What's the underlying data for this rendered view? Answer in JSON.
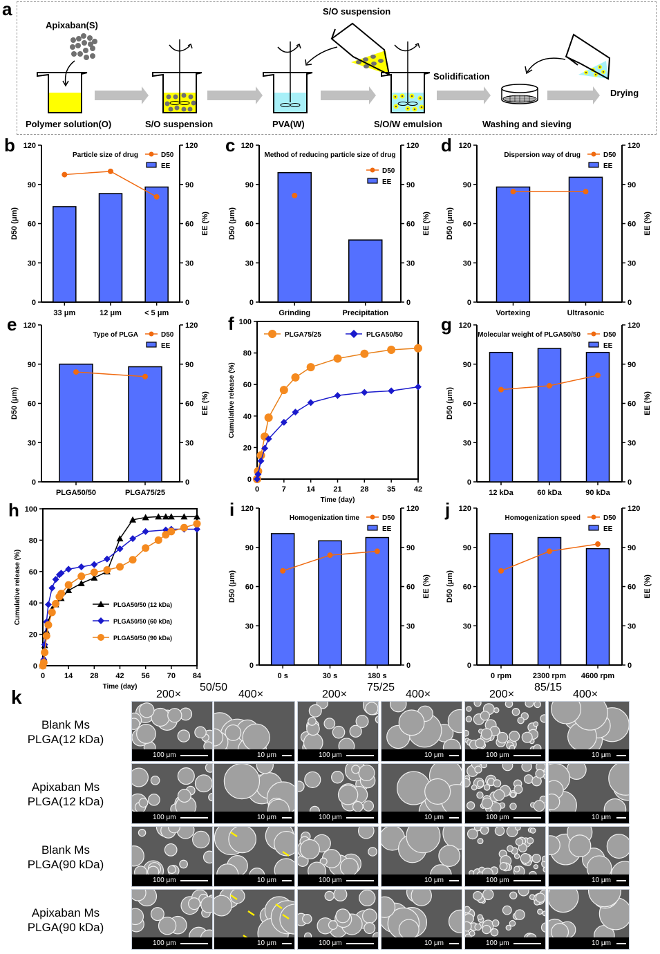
{
  "schema": {
    "panel": "a",
    "steps": [
      {
        "label": "Polymer solution(O)"
      },
      {
        "label": "S/O suspension"
      },
      {
        "label": "PVA(W)"
      },
      {
        "label": "S/O/W emulsion"
      },
      {
        "label": "Washing and sieving"
      }
    ],
    "drug_label": "Apixaban(S)",
    "pour_label": "S/O suspension",
    "solidification_label": "Solidification",
    "drying_label": "Drying",
    "colors": {
      "oil": "#ffff00",
      "water": "#a8f0f8",
      "particle": "#707070",
      "arrow": "#c0c0c0"
    }
  },
  "colors": {
    "bar": "#5470ff",
    "d50": "#f06a10",
    "orange": "#f58a1f",
    "blue": "#1a1acc",
    "black": "#000000"
  },
  "chart_data": [
    {
      "panel": "b",
      "type": "bar",
      "title": "Particle size of drug",
      "categories": [
        "33 μm",
        "12 μm",
        "< 5 μm"
      ],
      "series": [
        {
          "name": "EE",
          "kind": "bar",
          "axis": "right",
          "values": [
            73,
            83,
            88
          ]
        },
        {
          "name": "D50",
          "kind": "line",
          "axis": "left",
          "values": [
            97.5,
            100,
            80.5
          ]
        }
      ],
      "ylabel": "D50 (μm)",
      "y2label": "EE (%)",
      "ylim": [
        0,
        120
      ],
      "y2lim": [
        0,
        120
      ],
      "yticks": [
        "0",
        "30",
        "60",
        "90",
        "120"
      ],
      "legend": [
        "D50",
        "EE"
      ],
      "legend_pos": "top-right"
    },
    {
      "panel": "c",
      "type": "bar",
      "title": "Method of reducing particle size of drug",
      "categories": [
        "Grinding",
        "Precipitation"
      ],
      "series": [
        {
          "name": "EE",
          "kind": "bar",
          "axis": "right",
          "values": [
            99,
            47.5
          ]
        },
        {
          "name": "D50",
          "kind": "line",
          "axis": "left",
          "values": [
            81.5,
            null
          ]
        }
      ],
      "ylabel": "D50 (μm)",
      "y2label": "EE (%)",
      "ylim": [
        0,
        120
      ],
      "y2lim": [
        0,
        120
      ],
      "yticks": [
        "0",
        "30",
        "60",
        "90",
        "120"
      ],
      "legend": [
        "D50",
        "EE"
      ],
      "legend_pos": "top-right"
    },
    {
      "panel": "d",
      "type": "bar",
      "title": "Dispersion way of drug",
      "categories": [
        "Vortexing",
        "Ultrasonic"
      ],
      "series": [
        {
          "name": "EE",
          "kind": "bar",
          "axis": "right",
          "values": [
            88,
            95.5
          ]
        },
        {
          "name": "D50",
          "kind": "line",
          "axis": "left",
          "values": [
            84.5,
            84.5
          ]
        }
      ],
      "ylabel": "D50 (μm)",
      "y2label": "EE (%)",
      "ylim": [
        0,
        120
      ],
      "y2lim": [
        0,
        120
      ],
      "yticks": [
        "0",
        "30",
        "60",
        "90",
        "120"
      ],
      "legend": [
        "D50",
        "EE"
      ],
      "legend_pos": "top-right"
    },
    {
      "panel": "e",
      "type": "bar",
      "title": "Type of PLGA",
      "categories": [
        "PLGA50/50",
        "PLGA75/25"
      ],
      "series": [
        {
          "name": "EE",
          "kind": "bar",
          "axis": "right",
          "values": [
            90,
            88
          ]
        },
        {
          "name": "D50",
          "kind": "line",
          "axis": "left",
          "values": [
            84,
            80.5
          ]
        }
      ],
      "ylabel": "D50 (μm)",
      "y2label": "EE (%)",
      "ylim": [
        0,
        120
      ],
      "y2lim": [
        0,
        120
      ],
      "yticks": [
        "0",
        "30",
        "60",
        "90",
        "120"
      ],
      "legend": [
        "D50",
        "EE"
      ],
      "legend_pos": "top-right"
    },
    {
      "panel": "f",
      "type": "line",
      "title": "",
      "xlabel": "Time (day)",
      "ylabel": "Cumulative release (%)",
      "xlim": [
        0,
        42
      ],
      "ylim": [
        0,
        100
      ],
      "xticks": [
        "0",
        "7",
        "14",
        "21",
        "28",
        "35",
        "42"
      ],
      "yticks": [
        "0",
        "20",
        "40",
        "60",
        "80",
        "100"
      ],
      "series": [
        {
          "name": "PLGA75/25",
          "marker": "circle",
          "x": [
            0,
            0.25,
            1,
            2,
            3,
            7,
            10,
            14,
            21,
            28,
            35,
            42
          ],
          "y": [
            0,
            5,
            15,
            27,
            39,
            56.5,
            64.5,
            71,
            76.5,
            79.5,
            82,
            83
          ]
        },
        {
          "name": "PLGA50/50",
          "marker": "diamond",
          "x": [
            0,
            0.25,
            1,
            2,
            3,
            7,
            10,
            14,
            21,
            28,
            35,
            42
          ],
          "y": [
            0,
            3,
            11.5,
            19.5,
            25.5,
            36,
            42.5,
            48.5,
            53,
            55,
            56,
            58.5
          ]
        }
      ],
      "legend_pos": "top"
    },
    {
      "panel": "g",
      "type": "bar",
      "title": "Molecular weight of PLGA50/50",
      "categories": [
        "12 kDa",
        "60 kDa",
        "90 kDa"
      ],
      "series": [
        {
          "name": "EE",
          "kind": "bar",
          "axis": "right",
          "values": [
            99,
            102,
            99
          ]
        },
        {
          "name": "D50",
          "kind": "line",
          "axis": "left",
          "values": [
            70.5,
            73.5,
            81.5
          ]
        }
      ],
      "ylabel": "D50 (μm)",
      "y2label": "EE (%)",
      "ylim": [
        0,
        120
      ],
      "y2lim": [
        0,
        120
      ],
      "yticks": [
        "0",
        "30",
        "60",
        "90",
        "120"
      ],
      "legend": [
        "D50",
        "EE"
      ],
      "legend_pos": "top-right"
    },
    {
      "panel": "h",
      "type": "line",
      "title": "",
      "xlabel": "Time (day)",
      "ylabel": "Cumulative release (%)",
      "xlim": [
        0,
        84
      ],
      "ylim": [
        0,
        100
      ],
      "xticks": [
        "0",
        "14",
        "28",
        "42",
        "56",
        "70",
        "84"
      ],
      "yticks": [
        "0",
        "20",
        "40",
        "60",
        "80",
        "100"
      ],
      "series": [
        {
          "name": "PLGA50/50 (12 kDa)",
          "marker": "triangle",
          "x": [
            0,
            0.5,
            1,
            2,
            3,
            5,
            7,
            10,
            14,
            21,
            28,
            35,
            42,
            49,
            56,
            63,
            67,
            70,
            77,
            84
          ],
          "y": [
            0,
            5,
            13,
            22,
            28,
            36,
            39,
            43,
            48,
            52.5,
            56,
            60,
            81,
            93,
            94.5,
            95,
            95,
            95,
            95,
            95
          ]
        },
        {
          "name": "PLGA50/50 (60 kDa)",
          "marker": "diamond",
          "x": [
            0,
            0.5,
            1,
            2,
            3,
            5,
            7,
            9,
            10,
            14,
            21,
            28,
            35,
            42,
            49,
            56,
            67,
            70,
            77,
            84
          ],
          "y": [
            0,
            4,
            13.5,
            28,
            39,
            49.5,
            55,
            58,
            59,
            61.5,
            63,
            64.5,
            68,
            74.5,
            81,
            85.5,
            86.5,
            87,
            87,
            87
          ]
        },
        {
          "name": "PLGA50/50 (90 kDa)",
          "marker": "circle",
          "x": [
            0,
            0.5,
            1,
            2,
            3,
            5,
            7,
            9,
            10,
            14,
            21,
            28,
            35,
            42,
            49,
            56,
            63,
            67,
            70,
            77,
            84
          ],
          "y": [
            0,
            2,
            8.5,
            19,
            26,
            34,
            39.5,
            44,
            46,
            51.5,
            57,
            59.5,
            61,
            63,
            67.5,
            75,
            80,
            83.5,
            85.5,
            88,
            90.5
          ]
        }
      ],
      "legend_pos": "center-right"
    },
    {
      "panel": "i",
      "type": "bar",
      "title": "Homogenization time",
      "categories": [
        "0 s",
        "30 s",
        "180 s"
      ],
      "series": [
        {
          "name": "EE",
          "kind": "bar",
          "axis": "right",
          "values": [
            100.5,
            95,
            97.5
          ]
        },
        {
          "name": "D50",
          "kind": "line",
          "axis": "left",
          "values": [
            72,
            84,
            87
          ]
        }
      ],
      "ylabel": "D50 (μm)",
      "y2label": "EE (%)",
      "ylim": [
        0,
        120
      ],
      "y2lim": [
        0,
        120
      ],
      "yticks": [
        "0",
        "30",
        "60",
        "90",
        "120"
      ],
      "legend": [
        "D50",
        "EE"
      ],
      "legend_pos": "top-right"
    },
    {
      "panel": "j",
      "type": "bar",
      "title": "Homogenization speed",
      "categories": [
        "0 rpm",
        "2300 rpm",
        "4600 rpm"
      ],
      "series": [
        {
          "name": "EE",
          "kind": "bar",
          "axis": "right",
          "values": [
            100.5,
            97.5,
            89
          ]
        },
        {
          "name": "D50",
          "kind": "line",
          "axis": "left",
          "values": [
            72,
            87,
            92.5
          ]
        }
      ],
      "ylabel": "D50 (μm)",
      "y2label": "EE (%)",
      "ylim": [
        0,
        120
      ],
      "y2lim": [
        0,
        120
      ],
      "yticks": [
        "0",
        "30",
        "60",
        "90",
        "120"
      ],
      "legend": [
        "D50",
        "EE"
      ],
      "legend_pos": "top-right"
    }
  ],
  "sem": {
    "panel": "k",
    "groups": [
      {
        "ratio": "50/50",
        "mags": [
          "200×",
          "400×"
        ]
      },
      {
        "ratio": "75/25",
        "mags": [
          "200×",
          "400×"
        ]
      },
      {
        "ratio": "85/15",
        "mags": [
          "200×",
          "400×"
        ]
      }
    ],
    "rows": [
      {
        "line1": "Blank Ms",
        "line2": "PLGA(12 kDa)"
      },
      {
        "line1": "Apixaban Ms",
        "line2": "PLGA(12 kDa)"
      },
      {
        "line1": "Blank Ms",
        "line2": "PLGA(90 kDa)"
      },
      {
        "line1": "Apixaban Ms",
        "line2": "PLGA(90 kDa)"
      }
    ],
    "scalebars": [
      "100 μm",
      "10 μm"
    ]
  }
}
